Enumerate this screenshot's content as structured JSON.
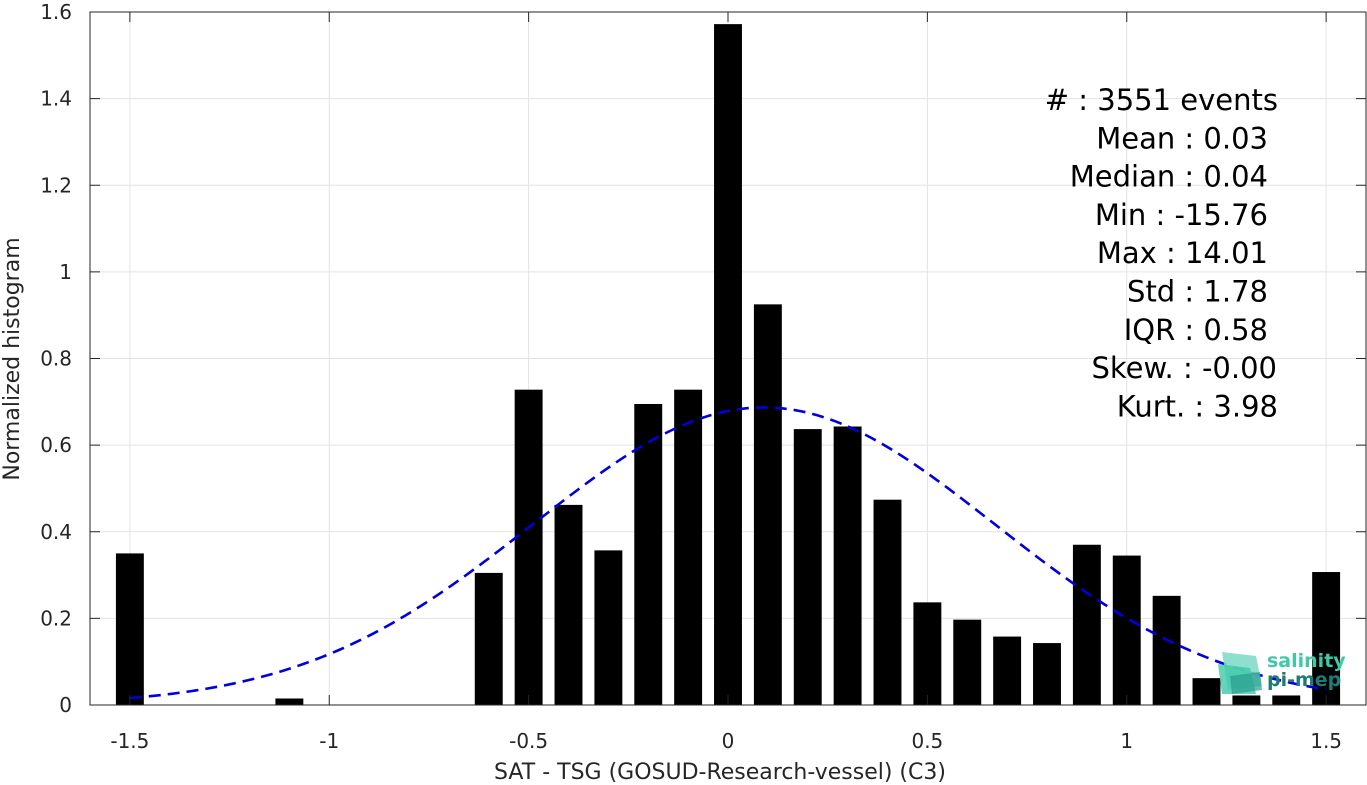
{
  "chart_data": {
    "type": "bar",
    "xlabel": "SAT - TSG (GOSUD-Research-vessel) (C3)",
    "ylabel": "Normalized histogram",
    "xlim": [
      -1.6,
      1.6
    ],
    "ylim": [
      0,
      1.6
    ],
    "xticks": [
      -1.5,
      -1,
      -0.5,
      0,
      0.5,
      1,
      1.5
    ],
    "xtick_labels": [
      "-1.5",
      "-1",
      "-0.5",
      "0",
      "0.5",
      "1",
      "1.5"
    ],
    "yticks": [
      0,
      0.2,
      0.4,
      0.6,
      0.8,
      1,
      1.2,
      1.4,
      1.6
    ],
    "ytick_labels": [
      "0",
      "0.2",
      "0.4",
      "0.6",
      "0.8",
      "1",
      "1.2",
      "1.4",
      "1.6"
    ],
    "grid": true,
    "bar_color": "#000000",
    "bar_width": 0.07,
    "bars": [
      {
        "x": -1.5,
        "y": 0.35
      },
      {
        "x": -1.4,
        "y": 0
      },
      {
        "x": -1.3,
        "y": 0
      },
      {
        "x": -1.2,
        "y": 0
      },
      {
        "x": -1.1,
        "y": 0.015
      },
      {
        "x": -1.0,
        "y": 0
      },
      {
        "x": -0.9,
        "y": 0
      },
      {
        "x": -0.8,
        "y": 0
      },
      {
        "x": -0.7,
        "y": 0
      },
      {
        "x": -0.6,
        "y": 0.305
      },
      {
        "x": -0.5,
        "y": 0.728
      },
      {
        "x": -0.4,
        "y": 0.462
      },
      {
        "x": -0.3,
        "y": 0.357
      },
      {
        "x": -0.2,
        "y": 0.695
      },
      {
        "x": -0.1,
        "y": 0.728
      },
      {
        "x": 0.0,
        "y": 1.572
      },
      {
        "x": 0.1,
        "y": 0.925
      },
      {
        "x": 0.2,
        "y": 0.637
      },
      {
        "x": 0.3,
        "y": 0.643
      },
      {
        "x": 0.4,
        "y": 0.474
      },
      {
        "x": 0.5,
        "y": 0.237
      },
      {
        "x": 0.6,
        "y": 0.197
      },
      {
        "x": 0.7,
        "y": 0.158
      },
      {
        "x": 0.8,
        "y": 0.143
      },
      {
        "x": 0.9,
        "y": 0.37
      },
      {
        "x": 1.0,
        "y": 0.345
      },
      {
        "x": 1.1,
        "y": 0.252
      },
      {
        "x": 1.2,
        "y": 0.062
      },
      {
        "x": 1.3,
        "y": 0.022
      },
      {
        "x": 1.4,
        "y": 0.022
      },
      {
        "x": 1.5,
        "y": 0.307
      }
    ],
    "fit": {
      "type": "gaussian",
      "style": "dashed",
      "color": "#0000dd",
      "mean": 0.09,
      "std": 0.58,
      "peak": 0.687,
      "x_range": [
        -1.5,
        1.5
      ]
    },
    "stats": [
      {
        "label": "#  : 3551 events"
      },
      {
        "label": "Mean : 0.03"
      },
      {
        "label": "Median : 0.04"
      },
      {
        "label": "Min : -15.76"
      },
      {
        "label": "Max : 14.01"
      },
      {
        "label": "Std : 1.78"
      },
      {
        "label": "IQR : 0.58"
      },
      {
        "label": "Skew. : -0.00"
      },
      {
        "label": "Kurt. : 3.98"
      }
    ]
  },
  "logo": {
    "line1": "salinity",
    "line2": "pi-mep",
    "color_light": "#3fc9a8",
    "color_dark": "#1f7a78"
  }
}
